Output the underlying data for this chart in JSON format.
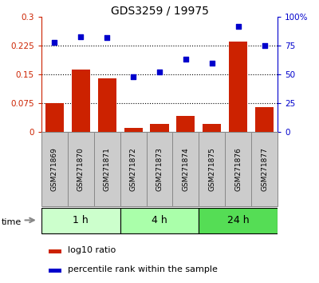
{
  "title": "GDS3259 / 19975",
  "samples": [
    "GSM271869",
    "GSM271870",
    "GSM271871",
    "GSM271872",
    "GSM271873",
    "GSM271874",
    "GSM271875",
    "GSM271876",
    "GSM271877"
  ],
  "log10_ratio": [
    0.075,
    0.163,
    0.14,
    0.01,
    0.02,
    0.04,
    0.02,
    0.235,
    0.065
  ],
  "percentile_rank": [
    78,
    83,
    82,
    48,
    52,
    63,
    60,
    92,
    75
  ],
  "bar_color": "#cc2200",
  "scatter_color": "#0000cc",
  "left_ylim": [
    0,
    0.3
  ],
  "right_ylim": [
    0,
    100
  ],
  "left_yticks": [
    0,
    0.075,
    0.15,
    0.225,
    0.3
  ],
  "left_ytick_labels": [
    "0",
    "0.075",
    "0.15",
    "0.225",
    "0.3"
  ],
  "right_yticks": [
    0,
    25,
    50,
    75,
    100
  ],
  "right_ytick_labels": [
    "0",
    "25",
    "50",
    "75",
    "100%"
  ],
  "hlines": [
    0.075,
    0.15,
    0.225
  ],
  "groups": [
    {
      "label": "1 h",
      "indices": [
        0,
        1,
        2
      ],
      "color": "#ccffcc"
    },
    {
      "label": "4 h",
      "indices": [
        3,
        4,
        5
      ],
      "color": "#aaffaa"
    },
    {
      "label": "24 h",
      "indices": [
        6,
        7,
        8
      ],
      "color": "#55dd55"
    }
  ],
  "time_label": "time",
  "legend_bar_label": "log10 ratio",
  "legend_scatter_label": "percentile rank within the sample",
  "bar_width": 0.7,
  "figsize": [
    4.0,
    3.54
  ],
  "dpi": 100,
  "bg_color": "#ffffff",
  "sample_box_color": "#cccccc",
  "sample_box_edge": "#888888",
  "title_fontsize": 10
}
